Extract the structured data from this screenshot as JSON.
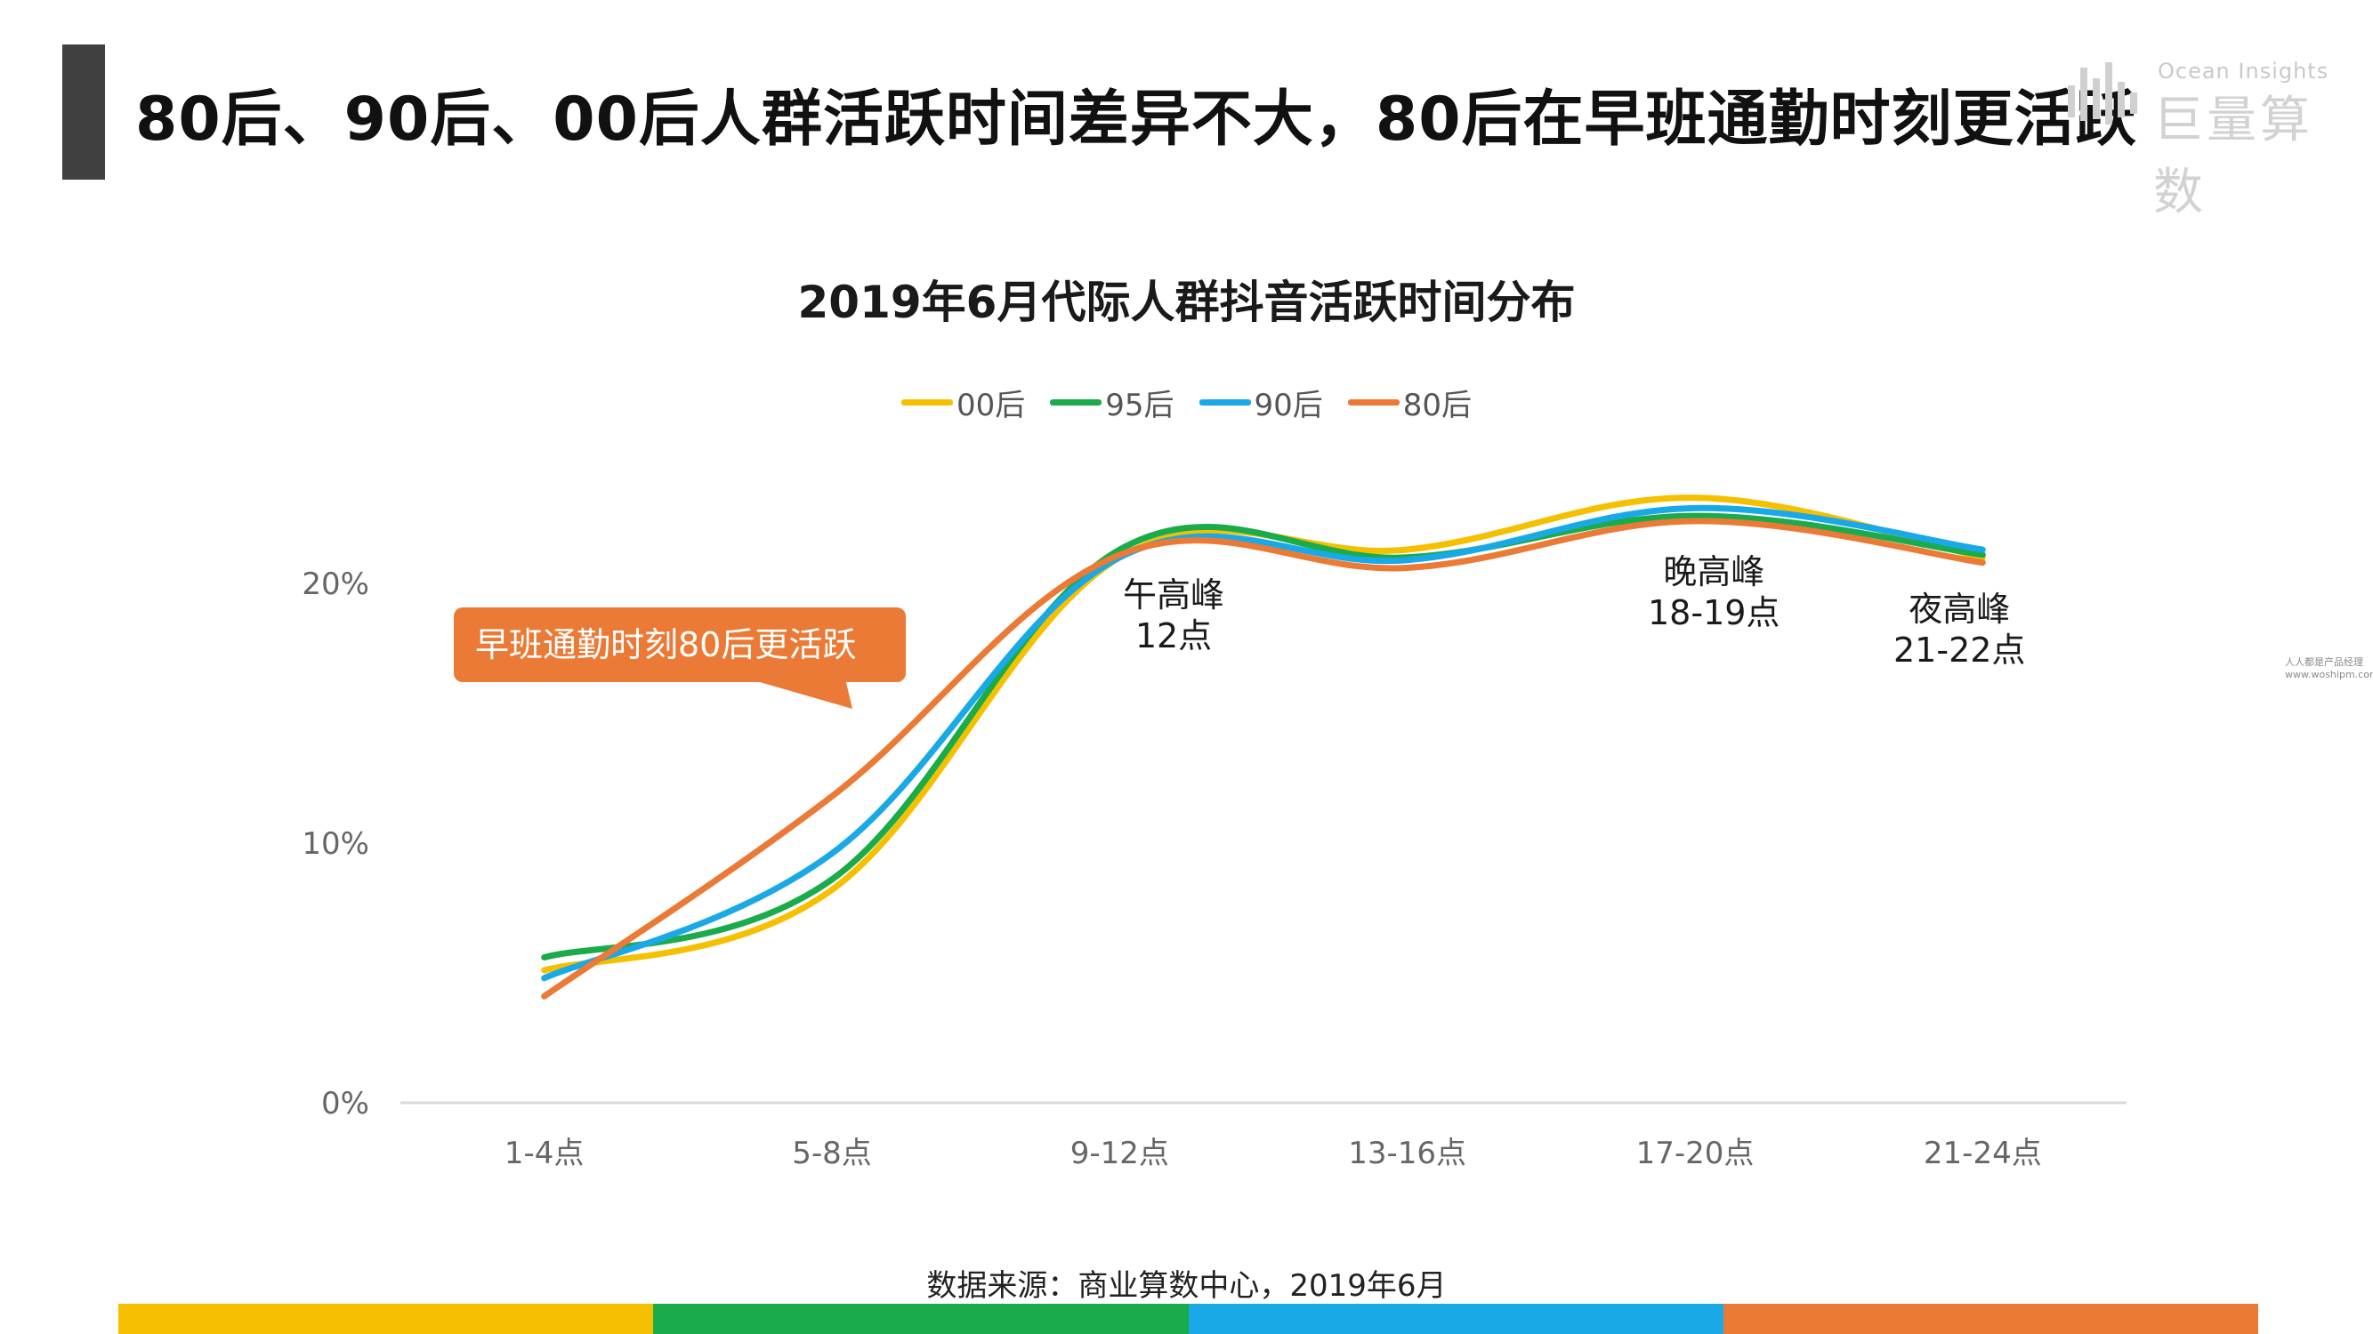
{
  "header": {
    "title": "80后、90后、00后人群活跃时间差异不大，80后在早班通勤时刻更活跃",
    "logo_en": "Ocean Insights",
    "logo_cn": "巨量算数"
  },
  "watermark": {
    "line1": "人人都是产品经理",
    "line2": "www.woshipm.com"
  },
  "colors": {
    "yellow": "#f5c000",
    "green": "#1aab4b",
    "blue": "#19a9e6",
    "orange": "#ea7a35",
    "title_bar": "#404040"
  },
  "chart_data": {
    "type": "line",
    "title": "2019年6月代际人群抖音活跃时间分布",
    "categories": [
      "1-4点",
      "5-8点",
      "9-12点",
      "13-16点",
      "17-20点",
      "21-24点"
    ],
    "y_ticks": [
      "0%",
      "10%",
      "20%"
    ],
    "ylim": [
      0,
      27
    ],
    "series": [
      {
        "name": "00后",
        "color": "#f5c000",
        "values": [
          5.1,
          8.2,
          21.0,
          21.3,
          23.3,
          21.0
        ]
      },
      {
        "name": "95后",
        "color": "#1aab4b",
        "values": [
          5.6,
          8.6,
          21.3,
          21.0,
          22.6,
          21.1
        ]
      },
      {
        "name": "90后",
        "color": "#19a9e6",
        "values": [
          4.8,
          9.6,
          21.0,
          20.9,
          22.9,
          21.3
        ]
      },
      {
        "name": "80后",
        "color": "#ea7a35",
        "values": [
          4.1,
          11.8,
          21.1,
          20.6,
          22.4,
          20.8
        ]
      }
    ],
    "annotations": [
      {
        "line1": "午高峰",
        "line2": "12点"
      },
      {
        "line1": "晚高峰",
        "line2": "18-19点"
      },
      {
        "line1": "夜高峰",
        "line2": "21-22点"
      }
    ],
    "callout": "早班通勤时刻80后更活跃",
    "legend": "top-center",
    "grid": false
  },
  "source": "数据来源：商业算数中心，2019年6月",
  "bottom_bar_colors": [
    "#f5c000",
    "#1aab4b",
    "#19a9e6",
    "#ea7a35"
  ]
}
